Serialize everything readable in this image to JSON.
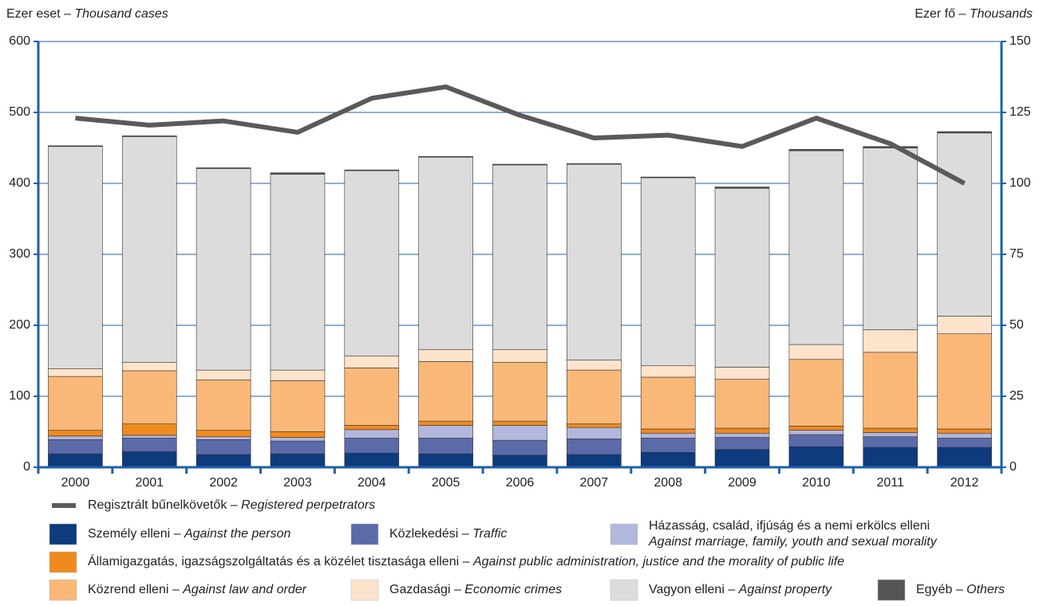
{
  "chart_data": {
    "type": "stacked_bar_line",
    "y_label": "Ezer eset – Thousand cases",
    "y2_label": "Ezer fő – Thousands",
    "categories": [
      "2000",
      "2001",
      "2002",
      "2003",
      "2004",
      "2005",
      "2006",
      "2007",
      "2008",
      "2009",
      "2010",
      "2011",
      "2012"
    ],
    "ylim": [
      0,
      600
    ],
    "yticks": [
      0,
      100,
      200,
      300,
      400,
      500,
      600
    ],
    "y2lim": [
      0,
      150
    ],
    "y2ticks": [
      0,
      25,
      50,
      75,
      100,
      125,
      150
    ],
    "grid": true,
    "series": [
      {
        "name": "Személy elleni – Against the person",
        "color": "#0e3a7e",
        "values": [
          19,
          22,
          18,
          19,
          20,
          19,
          17,
          18,
          21,
          25,
          29,
          28,
          28
        ]
      },
      {
        "name": "Közlekedési – Traffic",
        "color": "#5b6aa8",
        "values": [
          20,
          19,
          21,
          18,
          21,
          22,
          21,
          22,
          20,
          17,
          17,
          15,
          13
        ]
      },
      {
        "name": "Házasság, család, ifjúság és a nemi erkölcs elleni Against marriage, family, youth and sexual morality",
        "color": "#b3b7dc",
        "values": [
          5,
          4,
          4,
          5,
          12,
          18,
          21,
          16,
          7,
          6,
          6,
          6,
          7
        ]
      },
      {
        "name": "Államigazgatás, igazságszolgáltatás és a közélet tisztasága elleni – Against public administration, justice and the morality of public life",
        "color": "#f08a1e",
        "values": [
          8,
          16,
          9,
          8,
          6,
          6,
          6,
          5,
          6,
          7,
          6,
          6,
          6
        ]
      },
      {
        "name": "Közrend elleni – Against law and order",
        "color": "#f9b878",
        "values": [
          76,
          75,
          71,
          72,
          81,
          84,
          83,
          76,
          73,
          69,
          94,
          107,
          134
        ]
      },
      {
        "name": "Gazdasági – Economic crimes",
        "color": "#fde3cc",
        "values": [
          11,
          12,
          14,
          15,
          17,
          17,
          18,
          14,
          16,
          17,
          21,
          32,
          25
        ]
      },
      {
        "name": "Vagyon elleni – Against property",
        "color": "#dcdcdc",
        "values": [
          313,
          318,
          284,
          276,
          261,
          271,
          260,
          276,
          265,
          252,
          273,
          256,
          258
        ]
      },
      {
        "name": "Egyéb – Others",
        "color": "#555555",
        "values": [
          1,
          1,
          1,
          2,
          1,
          1,
          1,
          1,
          1,
          2,
          2,
          2,
          2
        ]
      },
      {
        "name": "Regisztrált bűnelkövetők – Registered perpetrators",
        "color": "#5a5a5a",
        "axis": "y2",
        "type": "line",
        "values": [
          123,
          120.5,
          122,
          118,
          130,
          134,
          124,
          116,
          117,
          113,
          123,
          114,
          100
        ]
      }
    ]
  }
}
